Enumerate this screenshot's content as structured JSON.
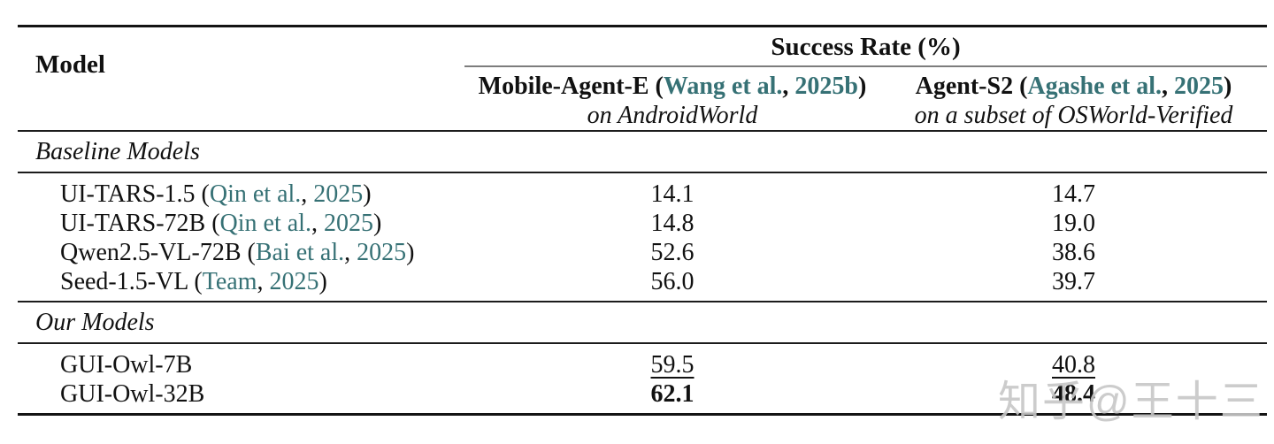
{
  "table": {
    "header": {
      "model_label": "Model",
      "success_rate_label": "Success Rate (%)",
      "columns": [
        {
          "title_prefix": "Mobile-Agent-E (",
          "cite_author": "Wang et al.",
          "cite_sep": ", ",
          "cite_year": "2025b",
          "title_suffix": ")",
          "subtitle": "on AndroidWorld"
        },
        {
          "title_prefix": "Agent-S2 (",
          "cite_author": "Agashe et al.",
          "cite_sep": ", ",
          "cite_year": "2025",
          "title_suffix": ")",
          "subtitle": "on a subset of OSWorld-Verified"
        }
      ]
    },
    "sections": [
      {
        "label": "Baseline Models",
        "rows": [
          {
            "name": "UI-TARS-1.5 (",
            "cite_author": "Qin et al.",
            "cite_sep": ", ",
            "cite_year": "2025",
            "name_close": ")",
            "mobile_agent_e": "14.1",
            "agent_s2": "14.7"
          },
          {
            "name": "UI-TARS-72B (",
            "cite_author": "Qin et al.",
            "cite_sep": ", ",
            "cite_year": "2025",
            "name_close": ")",
            "mobile_agent_e": "14.8",
            "agent_s2": "19.0"
          },
          {
            "name": "Qwen2.5-VL-72B (",
            "cite_author": "Bai et al.",
            "cite_sep": ", ",
            "cite_year": "2025",
            "name_close": ")",
            "mobile_agent_e": "52.6",
            "agent_s2": "38.6"
          },
          {
            "name": "Seed-1.5-VL (",
            "cite_author": "Team",
            "cite_sep": ", ",
            "cite_year": "2025",
            "name_close": ")",
            "mobile_agent_e": "56.0",
            "agent_s2": "39.7"
          }
        ]
      },
      {
        "label": "Our Models",
        "rows": [
          {
            "name": "GUI-Owl-7B",
            "mobile_agent_e": "59.5",
            "agent_s2": "40.8"
          },
          {
            "name": "GUI-Owl-32B",
            "mobile_agent_e": "62.1",
            "agent_s2": "48.4"
          }
        ]
      }
    ]
  },
  "colors": {
    "citation_teal": "#367175",
    "rule_black": "#141414",
    "cmidrule_gray": "#7d7d7d",
    "watermark_gray": "#c7c7c7"
  },
  "watermark": {
    "text": "知乎@王十三"
  }
}
